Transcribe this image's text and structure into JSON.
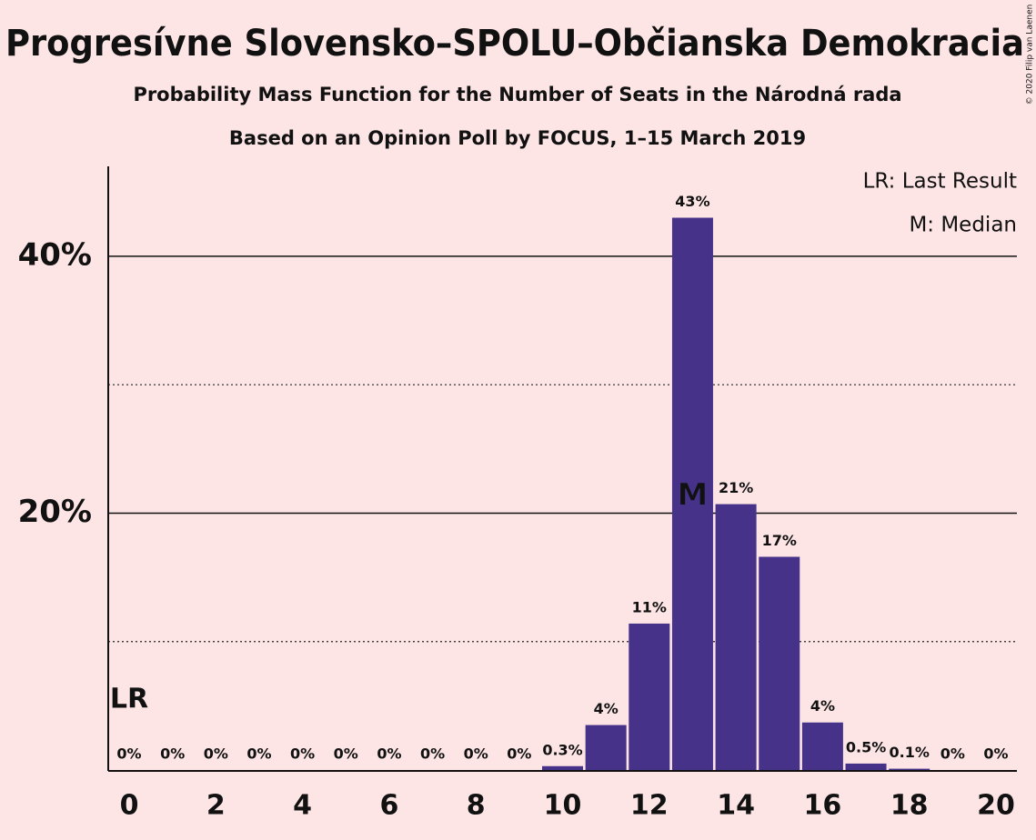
{
  "chart_data": {
    "type": "bar",
    "title": "Progresívne Slovensko–SPOLU–Občianska Demokracia",
    "subtitle": "Probability Mass Function for the Number of Seats in the Národná rada",
    "subtitle2": "Based on an Opinion Poll by FOCUS, 1–15 March 2019",
    "copyright": "© 2020 Filip van Laenen",
    "categories": [
      "0",
      null,
      "2",
      null,
      "4",
      null,
      "6",
      null,
      "8",
      null,
      "10",
      null,
      "12",
      null,
      "14",
      null,
      "16",
      null,
      "18",
      null,
      "20"
    ],
    "values": [
      0,
      0,
      0,
      0,
      0,
      0,
      0,
      0,
      0,
      0,
      0.3,
      3.5,
      11.4,
      43,
      20.7,
      16.6,
      3.7,
      0.5,
      0.1,
      0,
      0
    ],
    "value_labels": [
      "0%",
      "0%",
      "0%",
      "0%",
      "0%",
      "0%",
      "0%",
      "0%",
      "0%",
      "0%",
      "0.3%",
      "4%",
      "11%",
      "43%",
      "21%",
      "17%",
      "4%",
      "0.5%",
      "0.1%",
      "0%",
      "0%"
    ],
    "color": "#463289",
    "ylim": [
      0,
      47
    ],
    "yticks": [
      {
        "value": 20,
        "label": "20%"
      },
      {
        "value": 40,
        "label": "40%"
      }
    ],
    "minor_yticks": [
      10,
      30
    ],
    "grid": true,
    "median_index": 13,
    "median_label": "M",
    "last_result_index": 0,
    "last_result_label": "LR",
    "legend": [
      "LR: Last Result",
      "M: Median"
    ]
  }
}
